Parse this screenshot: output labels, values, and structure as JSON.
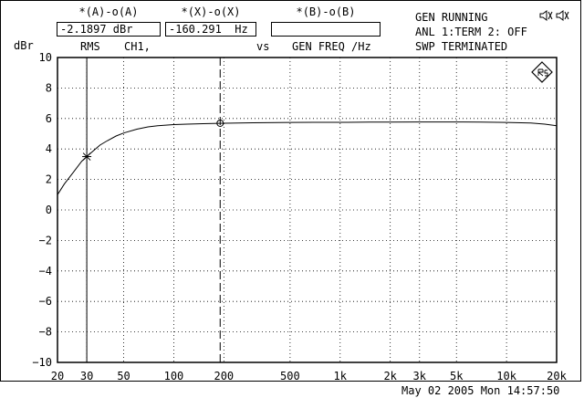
{
  "readouts": {
    "a_label": "*(A)-o(A)",
    "a_value": "-2.1897 dBr",
    "x_label": "*(X)-o(X)",
    "x_value": "-160.291  Hz",
    "b_label": "*(B)-o(B)",
    "b_value": ""
  },
  "status": {
    "line1": "GEN RUNNING",
    "line2": "ANL 1:TERM 2: OFF",
    "line3": "SWP TERMINATED"
  },
  "header": {
    "unit": "dBr",
    "mode": "RMS",
    "channel": "CH1,",
    "vs": "vs",
    "x_quantity": "GEN FREQ /Hz"
  },
  "footer": {
    "timestamp": "May 02 2005 Mon 14:57:50"
  },
  "icons": {
    "corner": "speaker-muted-icon",
    "logo": "rohde-schwarz-logo-icon"
  },
  "chart_data": {
    "type": "line",
    "x_scale": "log",
    "xlim": [
      20,
      20000
    ],
    "ylim": [
      -10,
      10
    ],
    "grid": true,
    "ylabel": "dBr",
    "xlabel": "GEN FREQ /Hz",
    "x_ticks": [
      {
        "value": 20,
        "label": "20"
      },
      {
        "value": 30,
        "label": "30"
      },
      {
        "value": 50,
        "label": "50"
      },
      {
        "value": 100,
        "label": "100"
      },
      {
        "value": 200,
        "label": "200"
      },
      {
        "value": 500,
        "label": "500"
      },
      {
        "value": 1000,
        "label": "1k"
      },
      {
        "value": 2000,
        "label": "2k"
      },
      {
        "value": 3000,
        "label": "3k"
      },
      {
        "value": 5000,
        "label": "5k"
      },
      {
        "value": 10000,
        "label": "10k"
      },
      {
        "value": 20000,
        "label": "20k"
      }
    ],
    "y_ticks": [
      {
        "value": 10,
        "label": "10"
      },
      {
        "value": 8,
        "label": "8"
      },
      {
        "value": 6,
        "label": "6"
      },
      {
        "value": 4,
        "label": "4"
      },
      {
        "value": 2,
        "label": "2"
      },
      {
        "value": 0,
        "label": "0"
      },
      {
        "value": -2,
        "label": "−2"
      },
      {
        "value": -4,
        "label": "−4"
      },
      {
        "value": -6,
        "label": "−6"
      },
      {
        "value": -8,
        "label": "−8"
      },
      {
        "value": -10,
        "label": "−10"
      }
    ],
    "series": [
      {
        "color": "#000000",
        "x": [
          20,
          22,
          25,
          28,
          30,
          33,
          36,
          40,
          45,
          50,
          60,
          70,
          80,
          100,
          120,
          150,
          200,
          300,
          500,
          700,
          1000,
          1500,
          2000,
          3000,
          5000,
          7000,
          10000,
          14000,
          17000,
          20000
        ],
        "y": [
          1.0,
          1.7,
          2.5,
          3.2,
          3.5,
          3.9,
          4.25,
          4.55,
          4.85,
          5.05,
          5.3,
          5.45,
          5.52,
          5.6,
          5.63,
          5.66,
          5.69,
          5.72,
          5.74,
          5.75,
          5.75,
          5.76,
          5.76,
          5.77,
          5.77,
          5.76,
          5.74,
          5.7,
          5.63,
          5.52
        ]
      }
    ],
    "cursors": [
      {
        "name": "*",
        "x": 30,
        "y": 3.5,
        "marker": "star",
        "line": "solid"
      },
      {
        "name": "o",
        "x": 190,
        "y": 5.69,
        "marker": "circle",
        "line": "dashed"
      }
    ]
  }
}
